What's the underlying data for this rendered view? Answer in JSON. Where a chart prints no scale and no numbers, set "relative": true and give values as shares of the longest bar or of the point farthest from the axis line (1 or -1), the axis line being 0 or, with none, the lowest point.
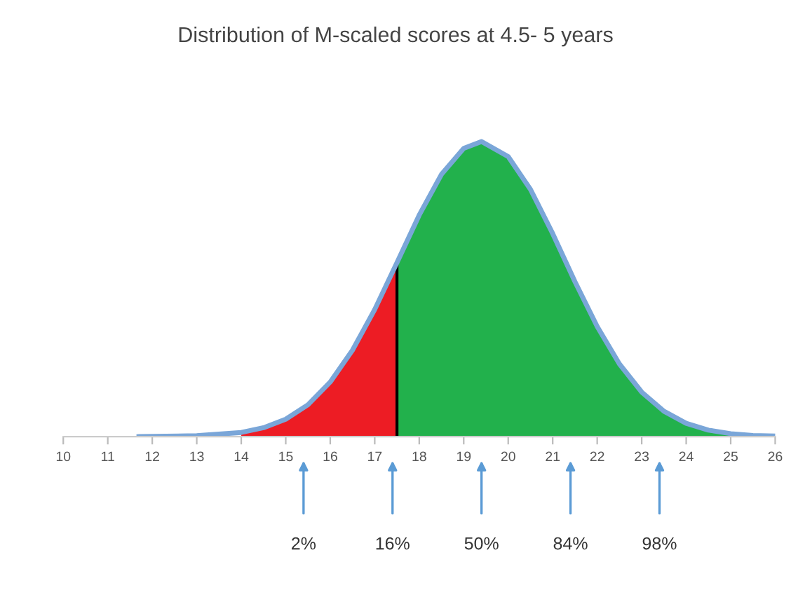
{
  "chart_data": {
    "type": "area",
    "title": "Distribution of M-scaled scores at 4.5- 5 years",
    "relative": true,
    "xlim": [
      10,
      26
    ],
    "xticks": [
      10,
      11,
      12,
      13,
      14,
      15,
      16,
      17,
      18,
      19,
      20,
      21,
      22,
      23,
      24,
      25,
      26
    ],
    "grid": false,
    "series": [
      {
        "type": "area",
        "color": "#ed1c24",
        "x": [
          14,
          14.5,
          15,
          15.5,
          16,
          16.5,
          17,
          17.5
        ],
        "values": [
          0.014,
          0.03,
          0.059,
          0.108,
          0.185,
          0.293,
          0.431,
          0.59
        ]
      },
      {
        "type": "area",
        "color": "#22b14c",
        "x": [
          17.5,
          18,
          18.5,
          19,
          19.4,
          20,
          20.5,
          21,
          21.5,
          22,
          22.5,
          23,
          23.5,
          24,
          24.5,
          25
        ],
        "values": [
          0.59,
          0.751,
          0.889,
          0.977,
          1,
          0.949,
          0.838,
          0.688,
          0.525,
          0.373,
          0.246,
          0.151,
          0.086,
          0.045,
          0.022,
          0.01
        ]
      },
      {
        "type": "line",
        "color": "#000000",
        "x": [
          17.5,
          17.5
        ],
        "values": [
          0,
          0.59
        ]
      },
      {
        "type": "line",
        "color": "#7aa6d8",
        "x": [
          11.7,
          12,
          13,
          14,
          14.5,
          15,
          15.5,
          16,
          16.5,
          17,
          17.5,
          18,
          18.5,
          19,
          19.4,
          20,
          20.5,
          21,
          21.5,
          22,
          22.5,
          23,
          23.5,
          24,
          24.5,
          25,
          25.5,
          26
        ],
        "values": [
          0,
          0.001,
          0.003,
          0.014,
          0.03,
          0.059,
          0.108,
          0.185,
          0.293,
          0.431,
          0.59,
          0.751,
          0.889,
          0.977,
          1,
          0.949,
          0.838,
          0.688,
          0.525,
          0.373,
          0.246,
          0.151,
          0.086,
          0.045,
          0.022,
          0.01,
          0.004,
          0.002
        ]
      }
    ],
    "annotations": [
      "2%",
      "16%",
      "50%",
      "84%",
      "98%"
    ]
  }
}
